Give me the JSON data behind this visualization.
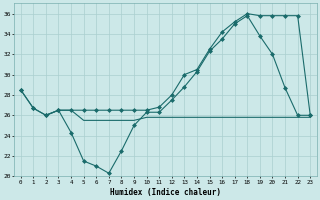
{
  "xlabel": "Humidex (Indice chaleur)",
  "bg_color": "#cce8e8",
  "line_color": "#1a6b6b",
  "grid_color": "#aacfcf",
  "xlim": [
    -0.5,
    23.5
  ],
  "ylim": [
    20,
    37
  ],
  "yticks": [
    20,
    22,
    24,
    26,
    28,
    30,
    32,
    34,
    36
  ],
  "xticks": [
    0,
    1,
    2,
    3,
    4,
    5,
    6,
    7,
    8,
    9,
    10,
    11,
    12,
    13,
    14,
    15,
    16,
    17,
    18,
    19,
    20,
    21,
    22,
    23
  ],
  "line1_x": [
    0,
    1,
    2,
    3,
    4,
    5,
    6,
    7,
    8,
    9,
    10,
    11,
    12,
    13,
    14,
    15,
    16,
    17,
    18,
    19,
    20,
    21,
    22,
    23
  ],
  "line1_y": [
    28.5,
    26.7,
    26.0,
    26.5,
    24.3,
    21.5,
    21.0,
    20.3,
    22.5,
    25.0,
    26.3,
    26.3,
    27.5,
    28.8,
    30.3,
    32.3,
    33.5,
    35.0,
    35.8,
    33.8,
    32.0,
    28.7,
    26.0,
    26.0
  ],
  "line2_x": [
    0,
    1,
    2,
    3,
    4,
    5,
    6,
    7,
    8,
    9,
    10,
    11,
    12,
    13,
    14,
    15,
    16,
    17,
    18,
    19,
    20,
    21,
    22,
    23
  ],
  "line2_y": [
    28.5,
    26.7,
    26.0,
    26.5,
    26.5,
    26.5,
    26.5,
    26.5,
    26.5,
    26.5,
    26.5,
    26.8,
    28.0,
    30.0,
    30.5,
    32.5,
    34.2,
    35.2,
    36.0,
    35.8,
    35.8,
    35.8,
    35.8,
    26.0
  ],
  "line3_x": [
    2,
    3,
    4,
    5,
    6,
    7,
    8,
    9,
    10,
    11,
    12,
    13,
    14,
    15,
    16,
    17,
    18,
    19,
    20,
    21,
    22,
    23
  ],
  "line3_y": [
    26.0,
    26.5,
    26.5,
    25.5,
    25.5,
    25.5,
    25.5,
    25.5,
    25.8,
    25.8,
    25.8,
    25.8,
    25.8,
    25.8,
    25.8,
    25.8,
    25.8,
    25.8,
    25.8,
    25.8,
    25.8,
    25.8
  ]
}
